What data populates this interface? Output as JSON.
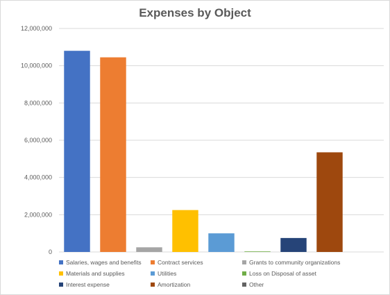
{
  "chart_data": {
    "type": "bar",
    "title": "Expenses by Object",
    "xlabel": "",
    "ylabel": "",
    "ylim": [
      0,
      12000000
    ],
    "yticks": [
      0,
      2000000,
      4000000,
      6000000,
      8000000,
      10000000,
      12000000
    ],
    "ytick_labels": [
      "0",
      "2,000,000",
      "4,000,000",
      "6,000,000",
      "8,000,000",
      "10,000,000",
      "12,000,000"
    ],
    "grid": true,
    "legend_position": "bottom",
    "series": [
      {
        "name": "Salaries, wages and benefits",
        "value": 10800000,
        "color": "#4472C4"
      },
      {
        "name": "Contract services",
        "value": 10450000,
        "color": "#ED7D31"
      },
      {
        "name": "Grants to community organizations",
        "value": 250000,
        "color": "#A5A5A5"
      },
      {
        "name": "Materials and supplies",
        "value": 2250000,
        "color": "#FFC000"
      },
      {
        "name": "Utilities",
        "value": 1000000,
        "color": "#5B9BD5"
      },
      {
        "name": "Loss on Disposal of asset",
        "value": 30000,
        "color": "#70AD47"
      },
      {
        "name": "Interest expense",
        "value": 750000,
        "color": "#264478"
      },
      {
        "name": "Amortization",
        "value": 5350000,
        "color": "#9E480E"
      },
      {
        "name": "Other",
        "value": 0,
        "color": "#636363"
      }
    ]
  }
}
